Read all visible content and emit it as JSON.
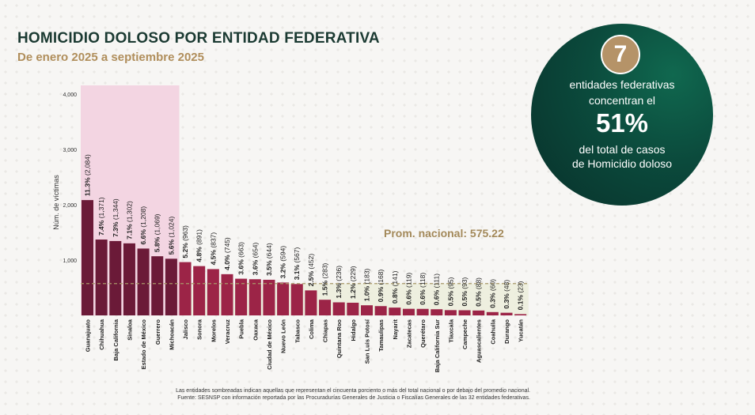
{
  "header": {
    "title": "HOMICIDIO DOLOSO POR ENTIDAD FEDERATIVA",
    "subtitle": "De enero 2025 a septiembre 2025"
  },
  "callout": {
    "number": "7",
    "line1": "entidades federativas",
    "line2": "concentran el",
    "percent": "51%",
    "line3": "del total de casos",
    "line4": "de Homicidio doloso"
  },
  "average_label": "Prom. nacional: 575.22",
  "footnotes": [
    "Las entidades sombreadas indican aquellas que representan el cincuenta porciento o más del total nacional o por debajo del promedio nacional.",
    "Fuente: SESNSP con información reportada por las Procuradurías Generales de Justicia o Fiscalías Generales de las 32 entidades federativas."
  ],
  "colors": {
    "top_bar": "#6b1a38",
    "other_bar": "#9c2447",
    "highlight_band": "#f3d5e2",
    "below_avg_band": "#eceedd",
    "average_line": "#a89868",
    "average_text": "#a3895a"
  },
  "chart_data": {
    "type": "bar",
    "ylabel": "Núm. de víctimas",
    "ylim": [
      0,
      4000
    ],
    "yticks": [
      "4,000",
      "3,000",
      "2,000",
      "1,000"
    ],
    "ytick_values": [
      4000,
      3000,
      2000,
      1000
    ],
    "average": 575.22,
    "highlighted_count": 7,
    "categories": [
      "Guanajuato",
      "Chihuahua",
      "Baja California",
      "Sinaloa",
      "Estado de México",
      "Guerrero",
      "Michoacán",
      "Jalisco",
      "Sonora",
      "Morelos",
      "Veracruz",
      "Puebla",
      "Oaxaca",
      "Ciudad de México",
      "Nuevo León",
      "Tabasco",
      "Colima",
      "Chiapas",
      "Quintana Roo",
      "Hidalgo",
      "San Luis Potosí",
      "Tamaulipas",
      "Nayarit",
      "Zacatecas",
      "Querétaro",
      "Baja California Sur",
      "Tlaxcala",
      "Campeche",
      "Aguascalientes",
      "Coahuila",
      "Durango",
      "Yucatán"
    ],
    "values": [
      2084,
      1371,
      1344,
      1302,
      1208,
      1069,
      1024,
      963,
      891,
      837,
      745,
      663,
      654,
      644,
      594,
      567,
      452,
      283,
      236,
      229,
      183,
      168,
      141,
      119,
      118,
      111,
      95,
      93,
      88,
      60,
      48,
      23
    ],
    "pct_labels": [
      "11.3%",
      "7.4%",
      "7.3%",
      "7.1%",
      "6.6%",
      "5.8%",
      "5.6%",
      "5.2%",
      "4.8%",
      "4.5%",
      "4.0%",
      "3.6%",
      "3.6%",
      "3.5%",
      "3.2%",
      "3.1%",
      "2.5%",
      "1.5%",
      "1.3%",
      "1.2%",
      "1.0%",
      "0.9%",
      "0.8%",
      "0.6%",
      "0.6%",
      "0.6%",
      "0.5%",
      "0.5%",
      "0.5%",
      "0.3%",
      "0.3%",
      "0.1%"
    ],
    "count_labels": [
      "(2,084)",
      "(1,371)",
      "(1,344)",
      "(1,302)",
      "(1,208)",
      "(1,069)",
      "(1,024)",
      "(963)",
      "(891)",
      "(837)",
      "(745)",
      "(663)",
      "(654)",
      "(644)",
      "(594)",
      "(567)",
      "(452)",
      "(283)",
      "(236)",
      "(229)",
      "(183)",
      "(168)",
      "(141)",
      "(119)",
      "(118)",
      "(111)",
      "(95)",
      "(93)",
      "(88)",
      "(60)",
      "(48)",
      "(23)"
    ]
  }
}
